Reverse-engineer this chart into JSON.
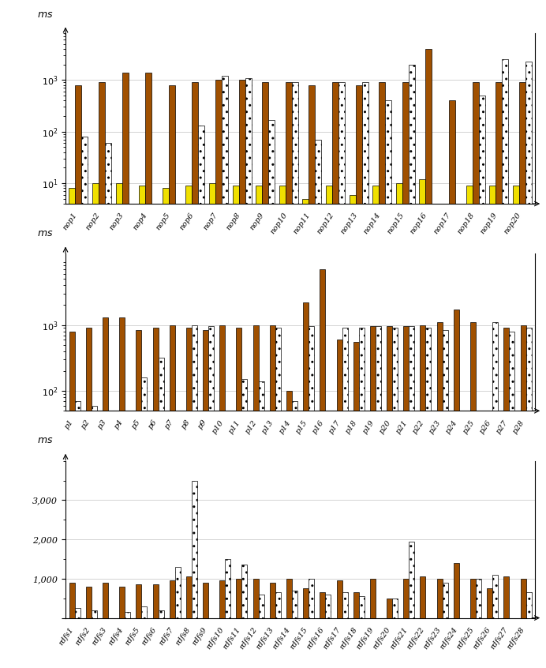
{
  "chart1": {
    "labels": [
      "nop1",
      "nop2",
      "nop3",
      "nop4",
      "nop5",
      "nop6",
      "nop7",
      "nop8",
      "nop9",
      "nop10",
      "nop11",
      "nop12",
      "nop13",
      "nop14",
      "nop15",
      "nop16",
      "nop17",
      "nop18",
      "nop19",
      "nop20"
    ],
    "sparql": [
      8,
      10,
      10,
      9,
      8,
      9,
      10,
      9,
      9,
      9,
      5,
      9,
      6,
      9,
      10,
      12,
      null,
      9,
      9,
      9
    ],
    "treesolver": [
      800,
      900,
      1400,
      1400,
      800,
      900,
      1000,
      1000,
      900,
      900,
      800,
      900,
      800,
      900,
      900,
      4000,
      400,
      900,
      900,
      900
    ],
    "afmu": [
      80,
      60,
      null,
      null,
      null,
      130,
      1200,
      1100,
      170,
      900,
      70,
      900,
      900,
      400,
      2000,
      null,
      null,
      500,
      2500,
      2300
    ]
  },
  "chart2": {
    "labels": [
      "p1",
      "p2",
      "p3",
      "p4",
      "p5",
      "p6",
      "p7",
      "p8",
      "p9",
      "p10",
      "p11",
      "p12",
      "p13",
      "p14",
      "p15",
      "p16",
      "p17",
      "p18",
      "p19",
      "p20",
      "p21",
      "p22",
      "p23",
      "p24",
      "p25",
      "p26",
      "p27",
      "p28"
    ],
    "treesolver": [
      800,
      900,
      1300,
      1300,
      850,
      900,
      1000,
      900,
      850,
      1000,
      900,
      1000,
      1000,
      100,
      2200,
      7000,
      600,
      550,
      950,
      950,
      950,
      1000,
      1100,
      1700,
      1100,
      null,
      900,
      1000
    ],
    "afmu": [
      70,
      60,
      null,
      null,
      160,
      320,
      null,
      1000,
      950,
      null,
      150,
      140,
      900,
      70,
      950,
      null,
      900,
      900,
      950,
      900,
      950,
      900,
      850,
      null,
      null,
      1100,
      800,
      900
    ]
  },
  "chart3": {
    "labels": [
      "rdfs1",
      "rdfs2",
      "rdfs3",
      "rdfs4",
      "rdfs5",
      "rdfs6",
      "rdfs7",
      "rdfs8",
      "rdfs9",
      "rdfs10",
      "rdfs11",
      "rdfs12",
      "rdfs13",
      "rdfs14",
      "rdfs15",
      "rdfs16",
      "rdfs17",
      "rdfs18",
      "rdfs19",
      "rdfs20",
      "rdfs21",
      "rdfs22",
      "rdfs23",
      "rdfs24",
      "rdfs25",
      "rdfs26",
      "rdfs27",
      "rdfs28"
    ],
    "treesolver": [
      900,
      800,
      900,
      800,
      850,
      850,
      950,
      1050,
      900,
      950,
      1000,
      1000,
      900,
      1000,
      750,
      650,
      950,
      650,
      1000,
      500,
      1000,
      1050,
      1000,
      1400,
      1000,
      750,
      1050,
      1000
    ],
    "afmu": [
      250,
      200,
      null,
      150,
      300,
      200,
      1300,
      3500,
      null,
      1500,
      1350,
      600,
      650,
      700,
      1000,
      600,
      650,
      550,
      null,
      500,
      1950,
      null,
      900,
      null,
      1000,
      1100,
      null,
      650
    ]
  },
  "colors": {
    "sparql": "#f0e000",
    "treesolver": "#a05000",
    "afmu_face": "#ffffff",
    "afmu_edge": "#000000"
  }
}
